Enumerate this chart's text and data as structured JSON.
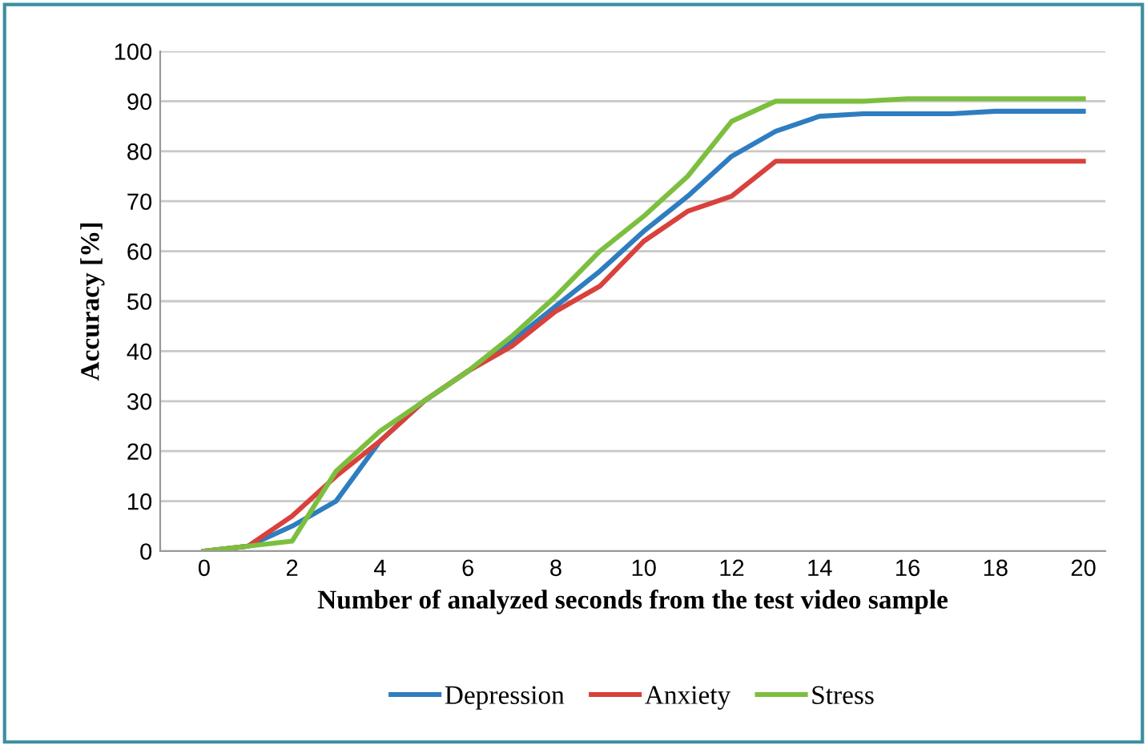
{
  "chart_data": {
    "type": "line",
    "xlabel": "Number of analyzed seconds from the test video sample",
    "ylabel": "Accuracy [%]",
    "x": [
      0,
      1,
      2,
      3,
      4,
      5,
      6,
      7,
      8,
      9,
      10,
      11,
      12,
      13,
      14,
      15,
      16,
      17,
      18,
      19,
      20
    ],
    "series": [
      {
        "name": "Depression",
        "color": "#2e7dc0",
        "values": [
          0,
          1,
          5,
          10,
          22,
          30,
          36,
          42,
          49,
          56,
          64,
          71,
          79,
          84,
          87,
          87.5,
          87.5,
          87.5,
          88,
          88,
          88
        ]
      },
      {
        "name": "Anxiety",
        "color": "#d9413c",
        "values": [
          0,
          1,
          7,
          15,
          22,
          30,
          36,
          41,
          48,
          53,
          62,
          68,
          71,
          78,
          78,
          78,
          78,
          78,
          78,
          78,
          78
        ]
      },
      {
        "name": "Stress",
        "color": "#7cbf3f",
        "values": [
          0,
          1,
          2,
          16,
          24,
          30,
          36,
          43,
          51,
          60,
          67,
          75,
          86,
          90,
          90,
          90,
          90.5,
          90.5,
          90.5,
          90.5,
          90.5
        ]
      }
    ],
    "xlim": [
      -1,
      20.5
    ],
    "xticks": [
      0,
      2,
      4,
      6,
      8,
      10,
      12,
      14,
      16,
      18,
      20
    ],
    "ylim": [
      0,
      100
    ],
    "yticks": [
      0,
      10,
      20,
      30,
      40,
      50,
      60,
      70,
      80,
      90,
      100
    ],
    "grid": "y",
    "legend": "bottom",
    "marker": "none",
    "line_style": "solid"
  }
}
